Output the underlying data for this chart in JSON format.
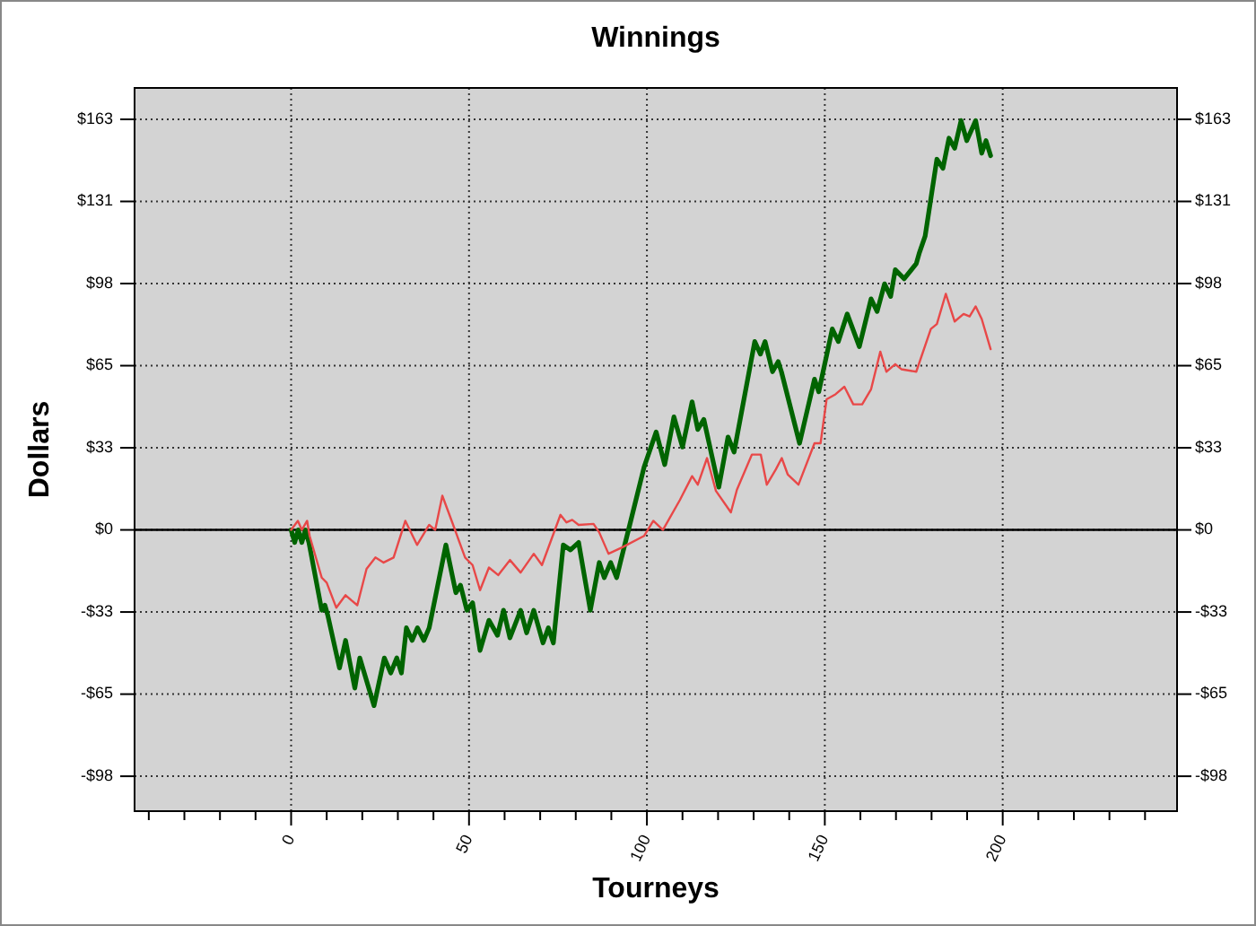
{
  "chart_data": {
    "type": "line",
    "title": "Winnings",
    "xlabel": "Tourneys",
    "ylabel": "Dollars",
    "x": [
      0,
      1.9,
      3,
      4.5,
      5.2,
      8.6,
      10,
      12.7,
      15.3,
      16.9,
      18.6,
      21.2,
      23.7,
      26,
      28.8,
      32.1,
      35.4,
      38.8,
      40.5,
      42.5,
      44.5,
      48.9,
      51,
      53.1,
      55.6,
      58.2,
      61.5,
      64.5,
      68.2,
      70.5,
      75.7,
      77.4,
      79,
      80.8,
      85,
      86.6,
      89.2,
      93,
      99.2,
      101.8,
      104.5,
      109.3,
      112.7,
      114.3,
      116.9,
      119.4,
      123.6,
      125.3,
      129.5,
      132,
      133.7,
      136.2,
      137.9,
      139.6,
      142.6,
      147.1,
      148.8,
      150.5,
      153,
      155.5,
      158,
      160.5,
      163,
      165.6,
      167.3,
      169.8,
      171.5,
      175.7,
      179.8,
      181.5,
      184,
      186.5,
      189,
      190.7,
      192.4,
      194.1,
      196.6
    ],
    "series": [
      {
        "color": "#006400",
        "x": [
          0,
          1,
          2,
          3,
          4,
          5,
          8.6,
          9.5,
          10.3,
          13.6,
          15.3,
          17.9,
          19.3,
          23.3,
          26.2,
          28,
          29.7,
          31,
          32.4,
          34,
          35.5,
          37.3,
          38.8,
          43.5,
          46.3,
          47.6,
          49.4,
          51,
          53.1,
          55.6,
          58,
          59.7,
          61.5,
          64.5,
          66.2,
          68.2,
          70.8,
          72.3,
          73.7,
          76.5,
          78.5,
          80.8,
          84.1,
          86.6,
          88,
          89.8,
          91.5,
          92.7,
          95,
          99.2,
          102.6,
          105,
          107.6,
          110,
          112.7,
          114.3,
          116,
          120.2,
          122.8,
          124.5,
          130.3,
          131.9,
          133.2,
          135.3,
          136.9,
          137.8,
          142.9,
          147.1,
          148.3,
          152.1,
          153.8,
          156.3,
          159.7,
          163,
          164.7,
          166.8,
          168.5,
          169.8,
          172.3,
          175.7,
          176.5,
          178.2,
          181.5,
          183.2,
          184.9,
          186.5,
          188.3,
          189.9,
          192.4,
          194.1,
          195.3,
          196.6
        ],
        "values": [
          0,
          -5,
          0,
          -5,
          0,
          -5,
          -32,
          -30,
          -34,
          -55,
          -44,
          -63,
          -51,
          -70,
          -51,
          -57,
          -51,
          -57,
          -39,
          -44,
          -39,
          -44,
          -39,
          -6,
          -25,
          -22,
          -32,
          -29,
          -48,
          -36,
          -42,
          -32,
          -43,
          -32,
          -41,
          -32,
          -45,
          -39,
          -45,
          -6,
          -8,
          -5,
          -32,
          -13,
          -19,
          -13,
          -19,
          -12,
          1,
          25,
          39,
          26,
          45,
          33,
          51,
          40,
          44,
          17,
          37,
          31,
          75,
          70,
          75,
          63,
          67,
          63,
          34.5,
          60,
          55,
          80,
          75,
          86,
          73,
          92,
          87,
          98,
          93,
          103.6,
          100,
          106,
          110,
          117,
          147.6,
          144,
          156,
          152,
          163,
          155,
          163,
          150,
          155,
          149
        ]
      },
      {
        "color": "#e84848",
        "values": [
          0,
          3.6,
          0,
          3.6,
          -2.4,
          -19,
          -21,
          -31,
          -26,
          -28,
          -30,
          -15.5,
          -11,
          -13,
          -11,
          3.6,
          -6,
          2,
          0,
          13.6,
          6,
          -11,
          -14,
          -24,
          -15,
          -18,
          -12,
          -17,
          -9.5,
          -14,
          6,
          3,
          4,
          2,
          2.4,
          -1,
          -9.5,
          -7,
          -2.4,
          3.6,
          0,
          12,
          21.4,
          18,
          28.6,
          15.5,
          7,
          16,
          30,
          30,
          18,
          24,
          28.6,
          22,
          18,
          34.5,
          34.5,
          52,
          54,
          57,
          50,
          50,
          56,
          71,
          63,
          66,
          64,
          63,
          80,
          82,
          94,
          83,
          86,
          85,
          89,
          84,
          72
        ]
      }
    ],
    "xlim": [
      -44,
      249
    ],
    "xticks": [
      {
        "value": -40,
        "label": null
      },
      {
        "value": -30,
        "label": null
      },
      {
        "value": -20,
        "label": null
      },
      {
        "value": -10,
        "label": null
      },
      0,
      {
        "value": 10,
        "label": null
      },
      {
        "value": 20,
        "label": null
      },
      {
        "value": 30,
        "label": null
      },
      {
        "value": 40,
        "label": null
      },
      50,
      {
        "value": 60,
        "label": null
      },
      {
        "value": 70,
        "label": null
      },
      {
        "value": 80,
        "label": null
      },
      {
        "value": 90,
        "label": null
      },
      100,
      {
        "value": 110,
        "label": null
      },
      {
        "value": 120,
        "label": null
      },
      {
        "value": 130,
        "label": null
      },
      {
        "value": 140,
        "label": null
      },
      150,
      {
        "value": 160,
        "label": null
      },
      {
        "value": 170,
        "label": null
      },
      {
        "value": 180,
        "label": null
      },
      {
        "value": 190,
        "label": null
      },
      200,
      {
        "value": 210,
        "label": null
      },
      {
        "value": 220,
        "label": null
      },
      {
        "value": 230,
        "label": null
      },
      {
        "value": 240,
        "label": null
      }
    ],
    "ylim": [
      -112,
      176
    ],
    "yticks": [
      {
        "value": -98.1,
        "label": "-$98"
      },
      {
        "value": -65.4,
        "label": "-$65"
      },
      {
        "value": -32.7,
        "label": "-$33"
      },
      {
        "value": 0,
        "label": "$0"
      },
      {
        "value": 32.7,
        "label": "$33"
      },
      {
        "value": 65.4,
        "label": "$65"
      },
      {
        "value": 98.1,
        "label": "$98"
      },
      {
        "value": 130.8,
        "label": "$131"
      },
      {
        "value": 163.5,
        "label": "$163"
      }
    ],
    "y2lim": [
      -112,
      176
    ],
    "y2ticks": [
      {
        "value": -98.1,
        "label": "-$98"
      },
      {
        "value": -65.4,
        "label": "-$65"
      },
      {
        "value": -32.7,
        "label": "-$33"
      },
      {
        "value": 0,
        "label": "$0"
      },
      {
        "value": 32.7,
        "label": "$33"
      },
      {
        "value": 65.4,
        "label": "$65"
      },
      {
        "value": 98.1,
        "label": "$98"
      },
      {
        "value": 130.8,
        "label": "$131"
      },
      {
        "value": 163.5,
        "label": "$163"
      }
    ],
    "ref_lines": [
      {
        "axis": "y",
        "value": 0,
        "label": null,
        "color": "#000000"
      }
    ],
    "grid": true,
    "marker": "none",
    "line_style": "solid"
  }
}
